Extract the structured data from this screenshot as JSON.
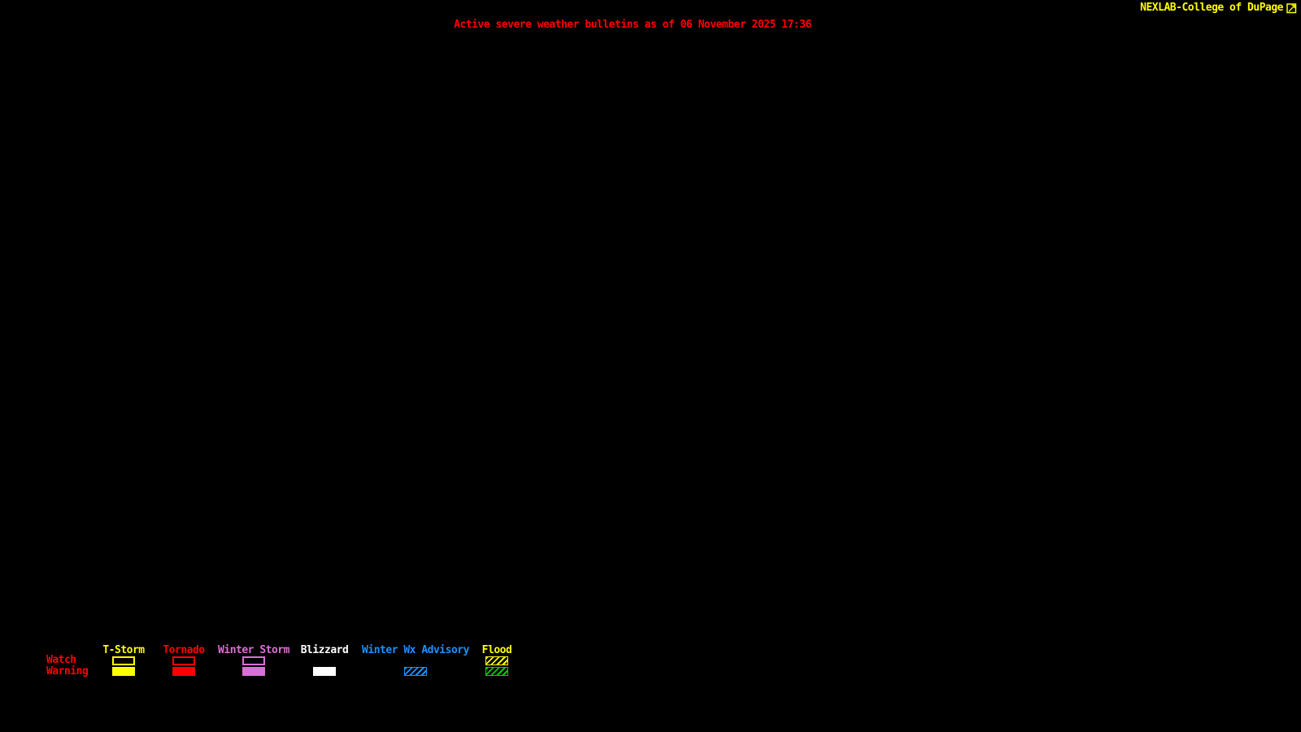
{
  "header": {
    "brand": "NEXLAB-College of DuPage",
    "brand_color": "#FFFF00",
    "title": "Active severe weather bulletins as of 06 November 2025 17:36",
    "title_color": "#FF0000"
  },
  "icons": {
    "nexlab_logo": "box-with-diagonal-arrow"
  },
  "map": {
    "background_color": "#000000",
    "active_bulletin_shapes": "none visible"
  },
  "legend": {
    "watch_label": "Watch",
    "warning_label": "Warning",
    "row_label_color": "#FF0000",
    "hatch_direction": "forward-slash",
    "columns": [
      {
        "id": "tstorm",
        "label": "T-Storm",
        "color": "#FFFF00",
        "watch": "outline",
        "warning": "solid"
      },
      {
        "id": "tornado",
        "label": "Tornado",
        "color": "#FF0000",
        "watch": "outline",
        "warning": "solid"
      },
      {
        "id": "winter-storm",
        "label": "Winter Storm",
        "color": "#DA70D6",
        "watch": "outline",
        "warning": "solid"
      },
      {
        "id": "blizzard",
        "label": "Blizzard",
        "color": "#FFFFFF",
        "watch": "none",
        "warning": "solid"
      },
      {
        "id": "winter-wx-advisory",
        "label": "Winter Wx Advisory",
        "color": "#1E90FF",
        "watch": "none",
        "warning": "hatched"
      },
      {
        "id": "flood",
        "label": "Flood",
        "color": "#FFFF00",
        "watch": "hatched",
        "warning": "hatched",
        "warning_color": "#00CD00"
      }
    ]
  }
}
